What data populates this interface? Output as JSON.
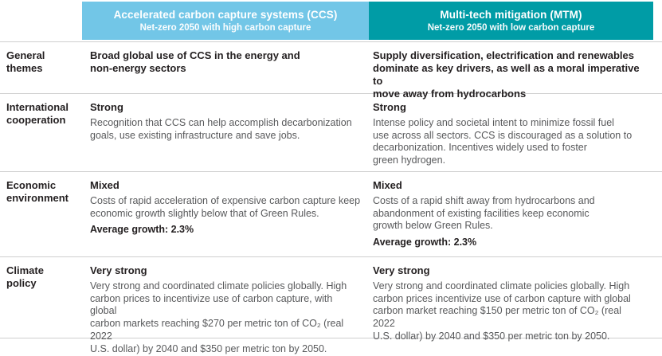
{
  "columns": {
    "ccs": {
      "title": "Accelerated carbon capture systems (CCS)",
      "subtitle": "Net-zero 2050 with high carbon capture",
      "color": "#72C6E7"
    },
    "mtm": {
      "title": "Multi-tech mitigation (MTM)",
      "subtitle": "Net-zero 2050 with low carbon capture",
      "color": "#009CA6"
    }
  },
  "rows": [
    {
      "label": "General\nthemes",
      "ccs": {
        "rating": "",
        "text": "Broad global use of CCS in the energy and\nnon-energy sectors",
        "growth": ""
      },
      "mtm": {
        "rating": "",
        "text": "Supply diversification, electrification and renewables\ndominate as key drivers, as well as a moral imperative to\nmove away from hydrocarbons",
        "growth": ""
      }
    },
    {
      "label": "International\ncooperation",
      "ccs": {
        "rating": "Strong",
        "text": "Recognition that CCS can help accomplish decarbonization\ngoals, use existing infrastructure and save jobs.",
        "growth": ""
      },
      "mtm": {
        "rating": "Strong",
        "text": "Intense policy and societal intent to minimize fossil fuel\nuse across all sectors. CCS is discouraged as a solution to\ndecarbonization. Incentives widely used to foster\ngreen hydrogen.",
        "growth": ""
      }
    },
    {
      "label": "Economic\nenvironment",
      "ccs": {
        "rating": "Mixed",
        "text": "Costs of rapid acceleration of expensive carbon capture keep\neconomic growth slightly below that of Green Rules.",
        "growth": "Average growth: 2.3%"
      },
      "mtm": {
        "rating": "Mixed",
        "text": "Costs of a rapid shift away from hydrocarbons and\nabandonment of existing facilities keep economic\ngrowth below Green Rules.",
        "growth": "Average growth: 2.3%"
      }
    },
    {
      "label": "Climate\npolicy",
      "ccs": {
        "rating": "Very strong",
        "text": "Very strong and coordinated climate policies globally. High\ncarbon prices to incentivize use of carbon capture, with global\ncarbon markets reaching $270 per metric ton of CO₂ (real 2022\nU.S. dollar) by 2040 and $350 per metric ton by 2050.",
        "growth": ""
      },
      "mtm": {
        "rating": "Very strong",
        "text": "Very strong and coordinated climate policies globally. High\ncarbon prices incentivize use of carbon capture with global\ncarbon market reaching $150 per metric ton of CO₂ (real 2022\nU.S. dollar) by 2040 and $350 per metric ton by 2050.",
        "growth": ""
      }
    }
  ],
  "colors": {
    "divider": "#cfcfcf",
    "header_text": "#ffffff",
    "heading_text": "#231f20",
    "body_text": "#58595b"
  }
}
